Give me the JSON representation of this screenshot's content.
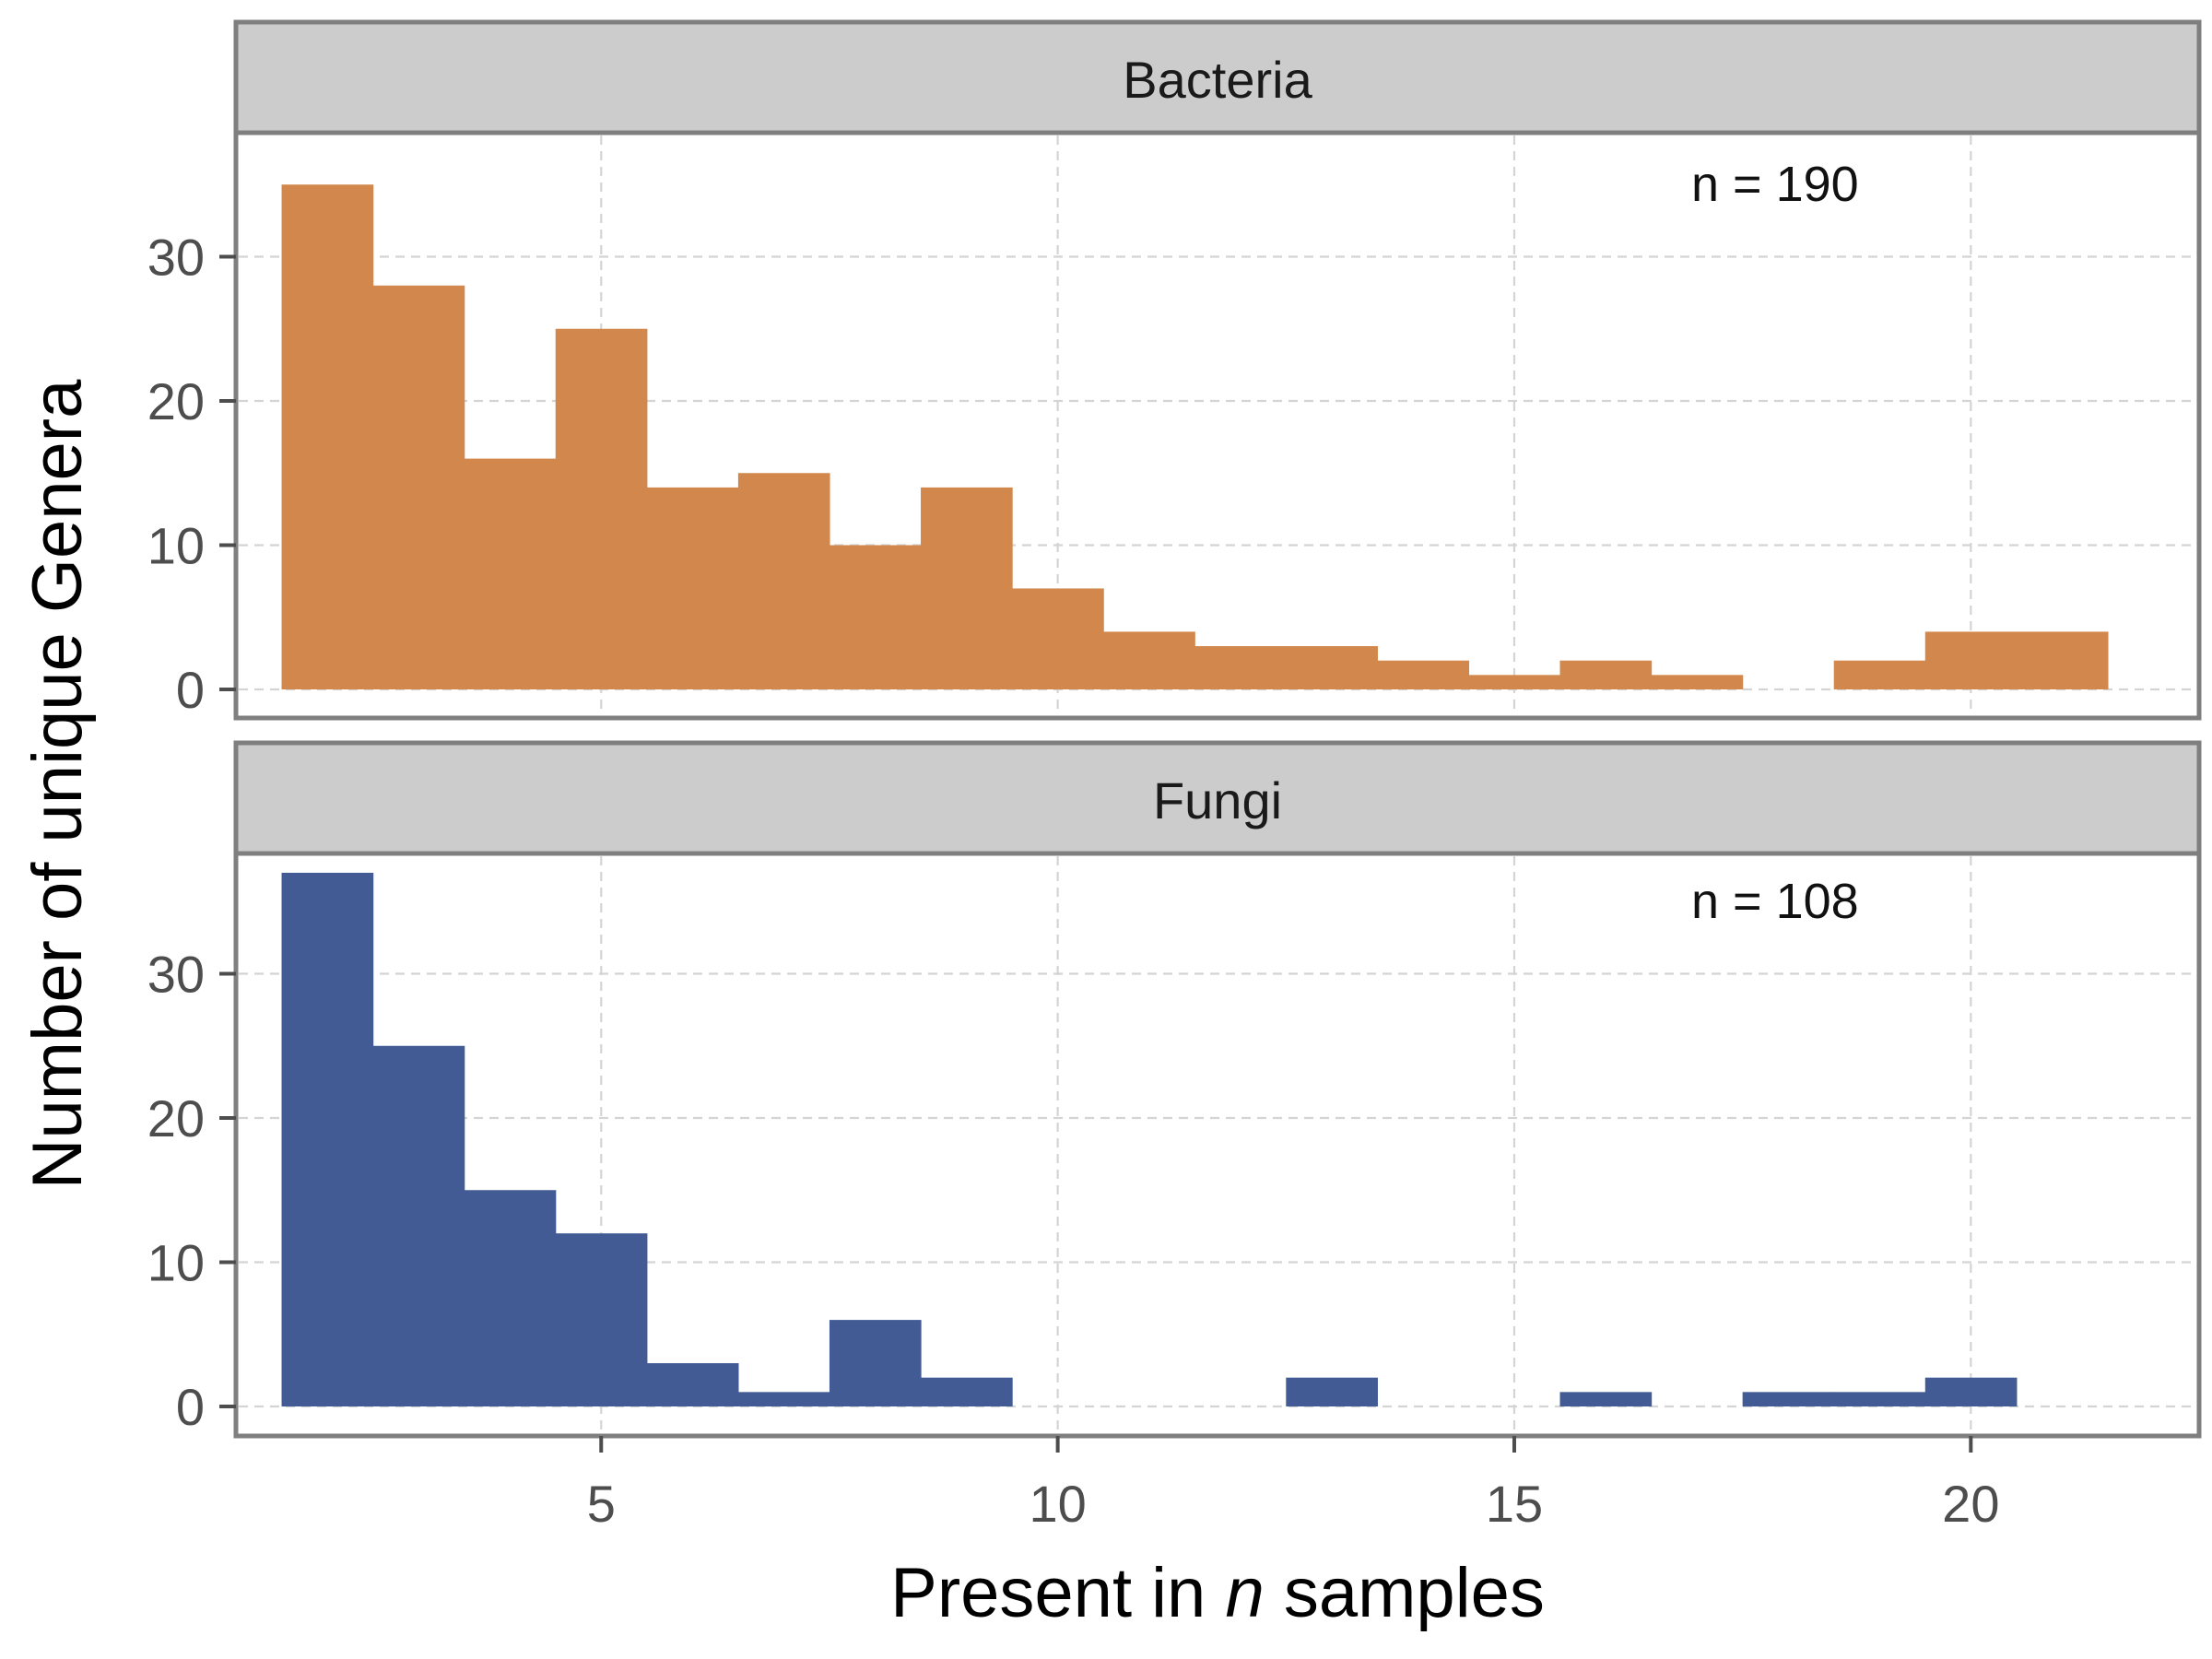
{
  "chart_data": {
    "type": "bar",
    "subtype": "histogram-facets",
    "xlabel_prefix": "Present in ",
    "xlabel_italic": "n",
    "xlabel_suffix": " samples",
    "ylabel": "Number of unique Genera",
    "xlim": [
      1,
      22.5
    ],
    "ylim": [
      0,
      38.5
    ],
    "x_ticks": [
      5,
      10,
      15,
      20
    ],
    "y_ticks": [
      0,
      10,
      20,
      30
    ],
    "grid": true,
    "bin_width": 1,
    "facets": [
      {
        "name": "Bacteria",
        "annotation": "n = 190",
        "color": "#D2884C",
        "bins_x": [
          2,
          3,
          4,
          5,
          6,
          7,
          8,
          9,
          10,
          11,
          12,
          13,
          14,
          15,
          16,
          17,
          18,
          19,
          20,
          21
        ],
        "values": [
          35,
          28,
          16,
          25,
          14,
          15,
          10,
          14,
          7,
          4,
          3,
          3,
          2,
          1,
          2,
          1,
          0,
          2,
          4,
          4
        ]
      },
      {
        "name": "Fungi",
        "annotation": "n = 108",
        "color": "#425B95",
        "bins_x": [
          2,
          3,
          4,
          5,
          6,
          7,
          8,
          9,
          10,
          11,
          12,
          13,
          14,
          15,
          16,
          17,
          18,
          19,
          20
        ],
        "values": [
          37,
          25,
          15,
          12,
          3,
          1,
          6,
          2,
          0,
          0,
          0,
          2,
          0,
          0,
          1,
          0,
          1,
          1,
          2
        ]
      }
    ]
  }
}
